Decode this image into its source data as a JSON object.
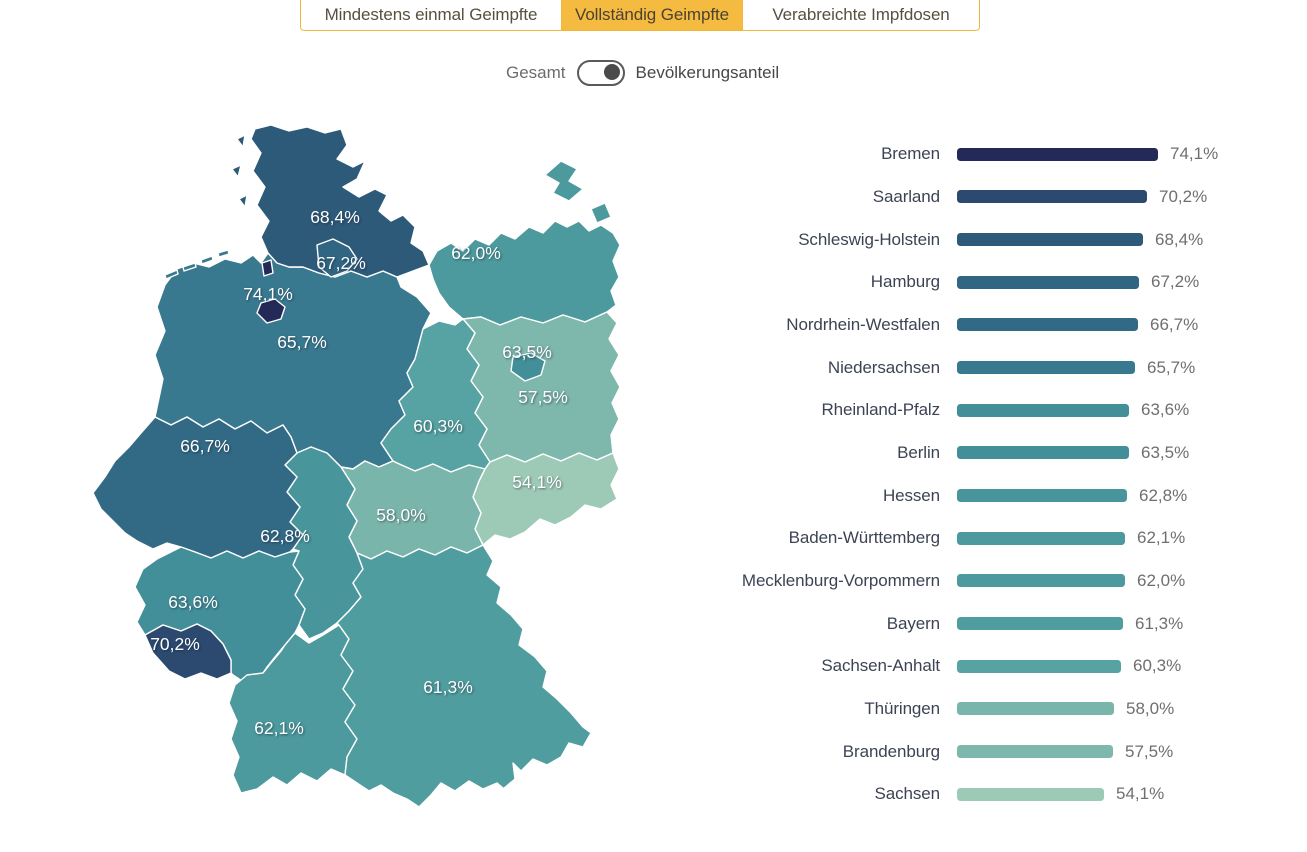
{
  "tabs": {
    "items": [
      {
        "label": "Mindestens einmal Geimpfte",
        "active": false
      },
      {
        "label": "Vollständig Geimpfte",
        "active": true
      },
      {
        "label": "Verabreichte Impfdosen",
        "active": false
      }
    ]
  },
  "toggle": {
    "left_label": "Gesamt",
    "right_label": "Bevölkerungsanteil",
    "selected": "Bevölkerungsanteil"
  },
  "colors": {
    "accent_yellow": "#f5ba40",
    "tab_border": "#f2b73d",
    "map_border": "#ffffff",
    "state_label_text": "#3c4454",
    "value_text": "#6f6f6f"
  },
  "chart_data": {
    "type": "bar",
    "orientation": "horizontal",
    "paired_view": "choropleth-map-of-germany",
    "title": "",
    "unit": "%",
    "categories": [
      "Bremen",
      "Saarland",
      "Schleswig-Holstein",
      "Hamburg",
      "Nordrhein-Westfalen",
      "Niedersachsen",
      "Rheinland-Pfalz",
      "Berlin",
      "Hessen",
      "Baden-Württemberg",
      "Mecklenburg-Vorpommern",
      "Bayern",
      "Sachsen-Anhalt",
      "Thüringen",
      "Brandenburg",
      "Sachsen"
    ],
    "values": [
      74.1,
      70.2,
      68.4,
      67.2,
      66.7,
      65.7,
      63.6,
      63.5,
      62.8,
      62.1,
      62.0,
      61.3,
      60.3,
      58.0,
      57.5,
      54.1
    ],
    "value_labels": [
      "74,1%",
      "70,2%",
      "68,4%",
      "67,2%",
      "66,7%",
      "65,7%",
      "63,6%",
      "63,5%",
      "62,8%",
      "62,1%",
      "62,0%",
      "61,3%",
      "60,3%",
      "58,0%",
      "57,5%",
      "54,1%"
    ],
    "bar_colors": [
      "#242a57",
      "#2c4a70",
      "#2e5a7a",
      "#316682",
      "#326a85",
      "#39798f",
      "#428e99",
      "#438f99",
      "#48969c",
      "#4c999e",
      "#4d9a9e",
      "#509d9f",
      "#57a2a2",
      "#7ab5ab",
      "#7eb7ac",
      "#9dcab6"
    ],
    "axis_visible": false,
    "grid": false,
    "legend": false
  }
}
